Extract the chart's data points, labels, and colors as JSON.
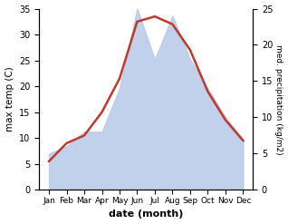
{
  "months": [
    "Jan",
    "Feb",
    "Mar",
    "Apr",
    "May",
    "Jun",
    "Jul",
    "Aug",
    "Sep",
    "Oct",
    "Nov",
    "Dec"
  ],
  "temp": [
    5.5,
    9.0,
    10.5,
    15.0,
    21.5,
    32.5,
    33.5,
    32.0,
    27.0,
    19.0,
    13.5,
    9.5
  ],
  "precip": [
    5,
    6,
    8,
    8,
    14,
    25,
    18,
    24,
    18,
    14,
    10,
    7
  ],
  "temp_color": "#c0392b",
  "precip_color": "#b8c9e8",
  "bg_color": "#ffffff",
  "xlabel": "date (month)",
  "ylabel_left": "max temp (C)",
  "ylabel_right": "med. precipitation (kg/m2)",
  "ylim_left": [
    0,
    35
  ],
  "ylim_right": [
    0,
    25
  ],
  "yticks_left": [
    0,
    5,
    10,
    15,
    20,
    25,
    30,
    35
  ],
  "yticks_right": [
    0,
    5,
    10,
    15,
    20,
    25
  ]
}
